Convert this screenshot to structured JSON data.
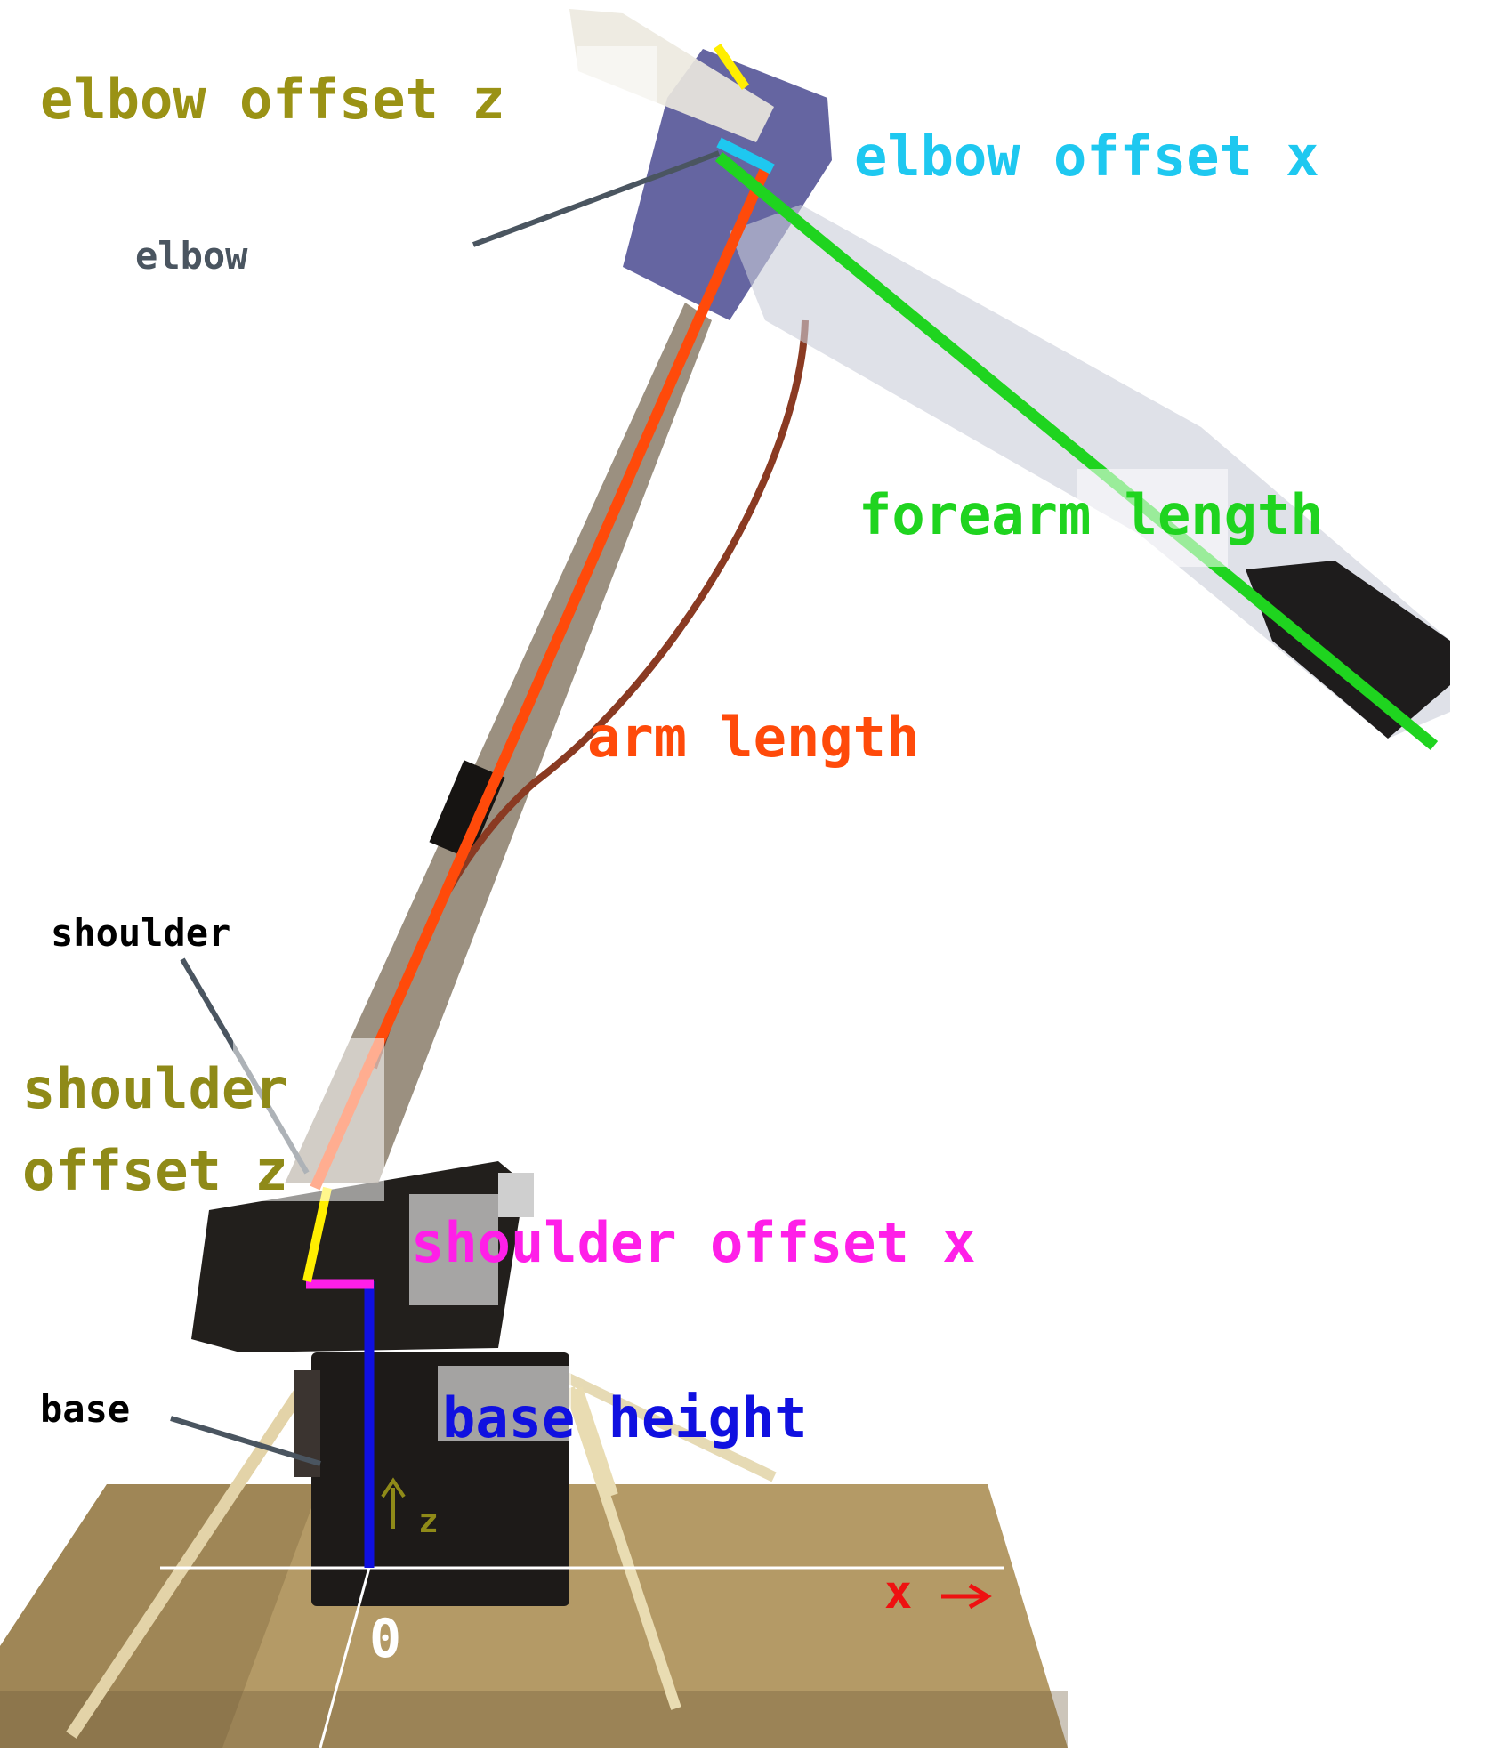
{
  "labels": {
    "elbow_offset_z": "elbow offset z",
    "elbow_offset_x": "elbow offset x",
    "elbow": "elbow",
    "forearm_length": "forearm length",
    "arm_length": "arm length",
    "shoulder": "shoulder",
    "shoulder_offset_z_line1": "shoulder",
    "shoulder_offset_z_line2": "offset z",
    "shoulder_offset_x": "shoulder offset x",
    "base": "base",
    "base_height": "base height",
    "axis_z": "z",
    "axis_x": "x",
    "origin": "0"
  },
  "colors": {
    "elbow_offset_z": "#9a9215",
    "shoulder_offset_z": "#8f8a18",
    "elbow_offset_x": "#1ec8f0",
    "forearm_length": "#1fd41f",
    "arm_length": "#ff4a0a",
    "shoulder_offset_x": "#ff1fe8",
    "base_height": "#1010e0",
    "axis_x": "#ee1111",
    "callout": "#4a5560",
    "yellow_segment": "#ffee00"
  },
  "icons": [
    "arrow-up-icon",
    "arrow-right-icon"
  ]
}
